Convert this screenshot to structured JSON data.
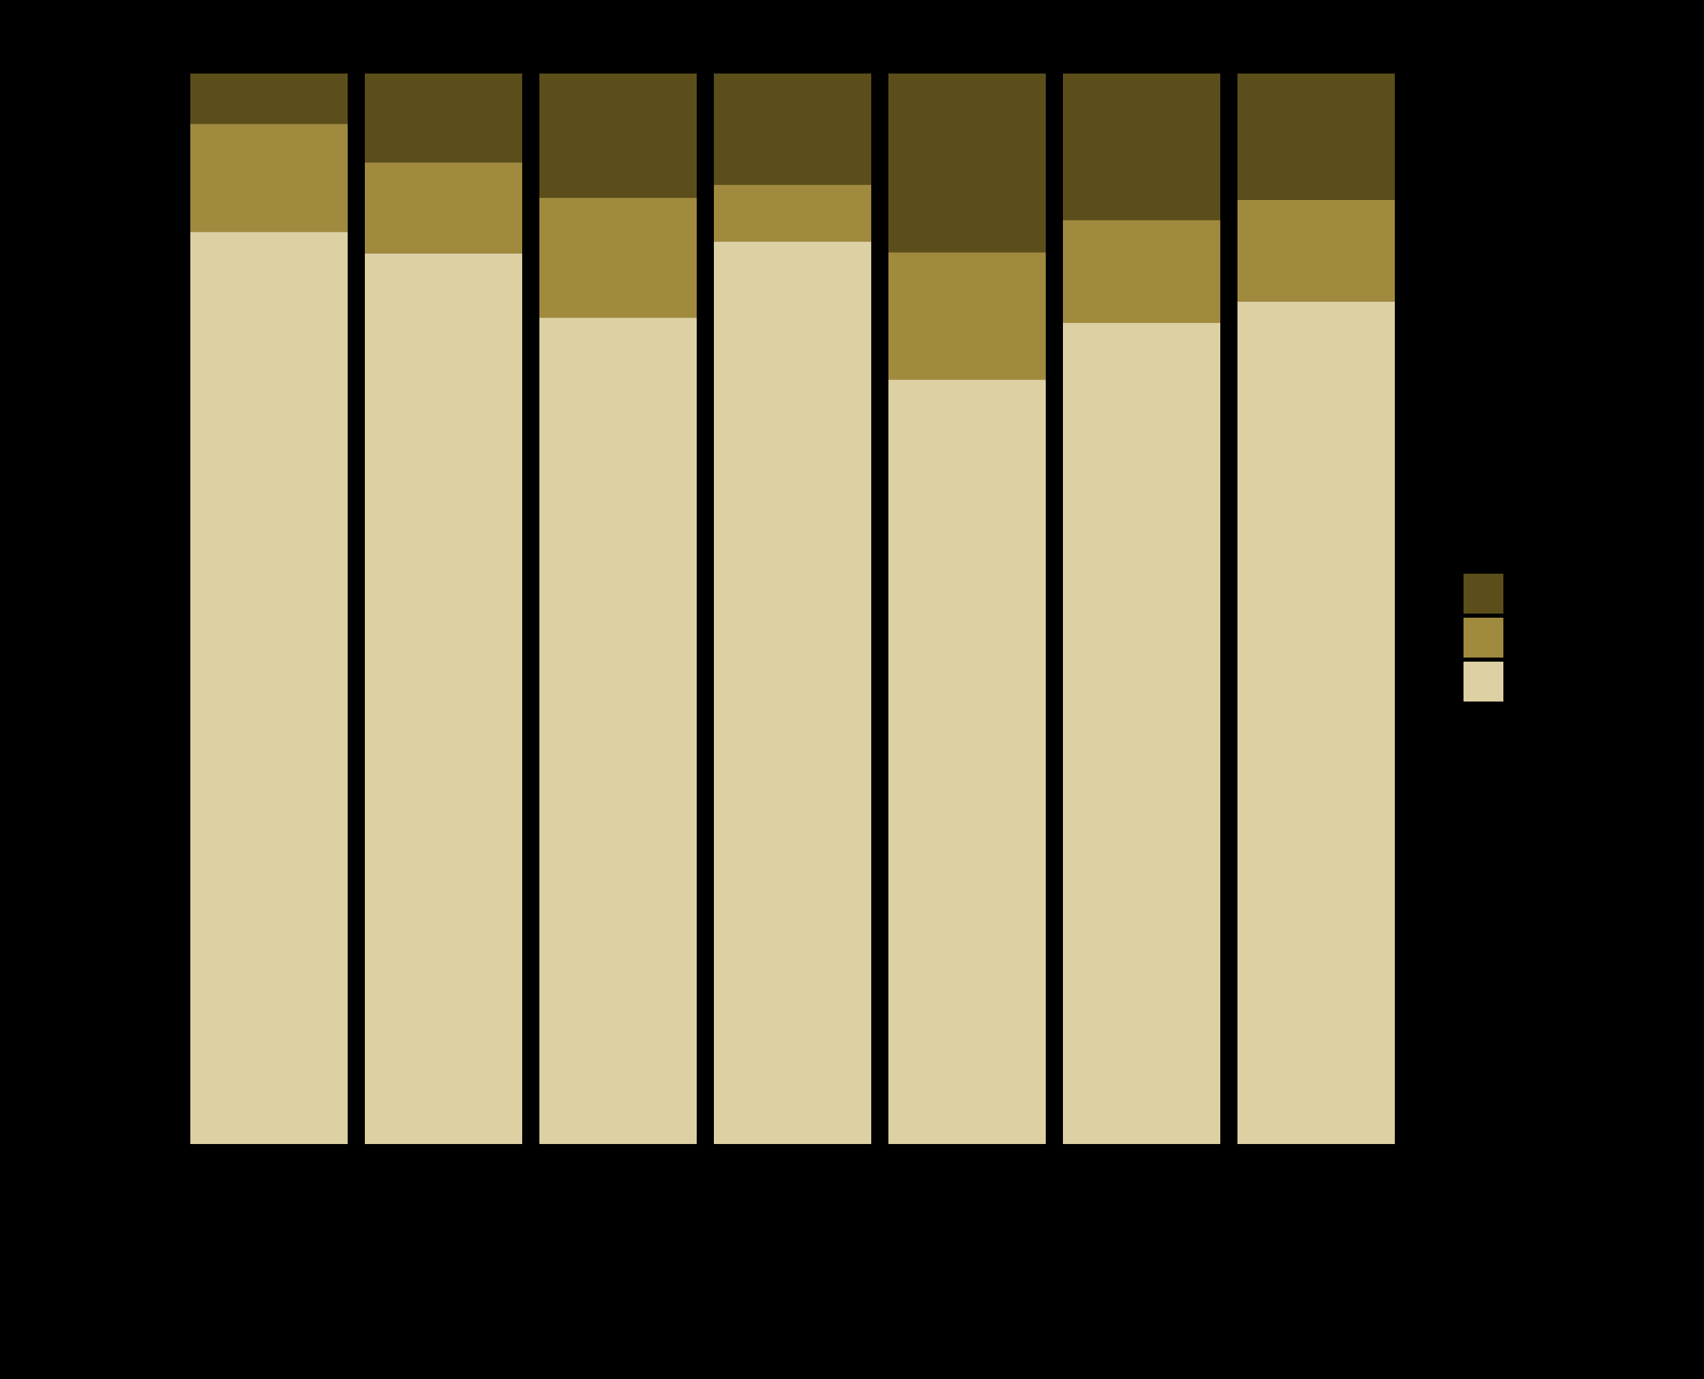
{
  "chart_data": {
    "type": "bar",
    "stacked": true,
    "normalized": true,
    "title": "",
    "xlabel": "",
    "ylabel": "",
    "ylim": [
      0,
      1
    ],
    "grid": false,
    "legend_position": "right",
    "background": "#000000",
    "categories": [
      "",
      "",
      "",
      "",
      "",
      "",
      ""
    ],
    "series": [
      {
        "color": "#ddd0a3",
        "values": [
          0.852,
          0.832,
          0.772,
          0.843,
          0.714,
          0.767,
          0.787
        ]
      },
      {
        "color": "#a08a3e",
        "values": [
          0.101,
          0.085,
          0.112,
          0.053,
          0.119,
          0.096,
          0.095
        ]
      },
      {
        "color": "#5b4e1b",
        "values": [
          0.047,
          0.083,
          0.116,
          0.104,
          0.167,
          0.137,
          0.118
        ]
      }
    ]
  }
}
